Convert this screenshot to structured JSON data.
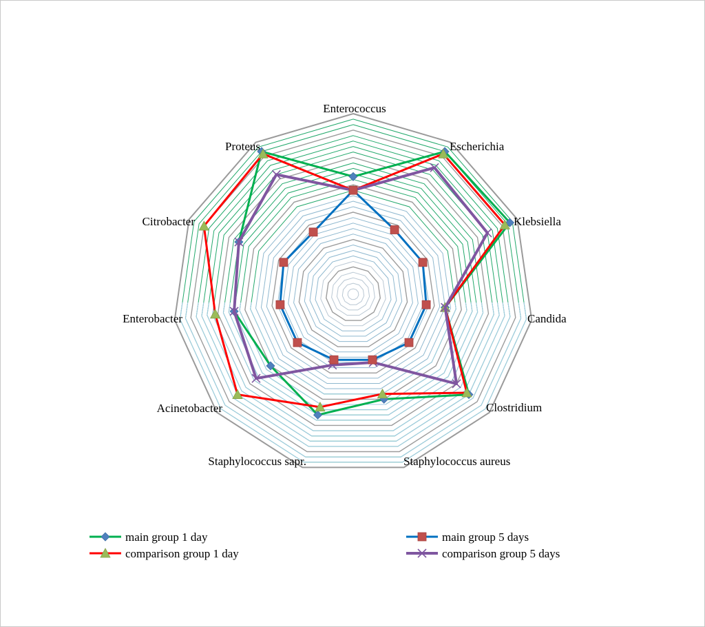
{
  "chart_data": {
    "type": "radar",
    "title": "",
    "categories": [
      "Enterococcus",
      "Escherichia",
      "Klebsiella",
      "Candida",
      "Clostridium",
      "Staphylococcus aureus",
      "Staphylococcus sapr.",
      "Acinetobacter",
      "Enterobacter",
      "Citrobacter",
      "Proteus"
    ],
    "range": [
      0,
      0.66
    ],
    "ring_step": 0.02,
    "series": [
      {
        "name": "main group 1 day",
        "color": "#00b050",
        "marker": "diamond",
        "marker_color": "#4f81bd",
        "values": [
          0.43,
          0.62,
          0.63,
          0.34,
          0.56,
          0.4,
          0.46,
          0.4,
          0.44,
          0.46,
          0.62
        ]
      },
      {
        "name": "main group 5 days",
        "color": "#0070c0",
        "marker": "square",
        "marker_color": "#c0504d",
        "values": [
          0.38,
          0.28,
          0.28,
          0.27,
          0.27,
          0.25,
          0.25,
          0.27,
          0.27,
          0.28,
          0.27
        ]
      },
      {
        "name": "comparison group 1 day",
        "color": "#ff0000",
        "marker": "triangle",
        "marker_color": "#9bbb59",
        "values": [
          0.38,
          0.61,
          0.61,
          0.34,
          0.55,
          0.38,
          0.43,
          0.56,
          0.51,
          0.6,
          0.61
        ]
      },
      {
        "name": "comparison group 5 days",
        "color": "#7f56a0",
        "marker": "cross",
        "marker_color": "#7f56a0",
        "values": [
          0.38,
          0.55,
          0.54,
          0.34,
          0.5,
          0.26,
          0.27,
          0.47,
          0.44,
          0.46,
          0.52
        ]
      }
    ],
    "legend_position": "bottom"
  }
}
